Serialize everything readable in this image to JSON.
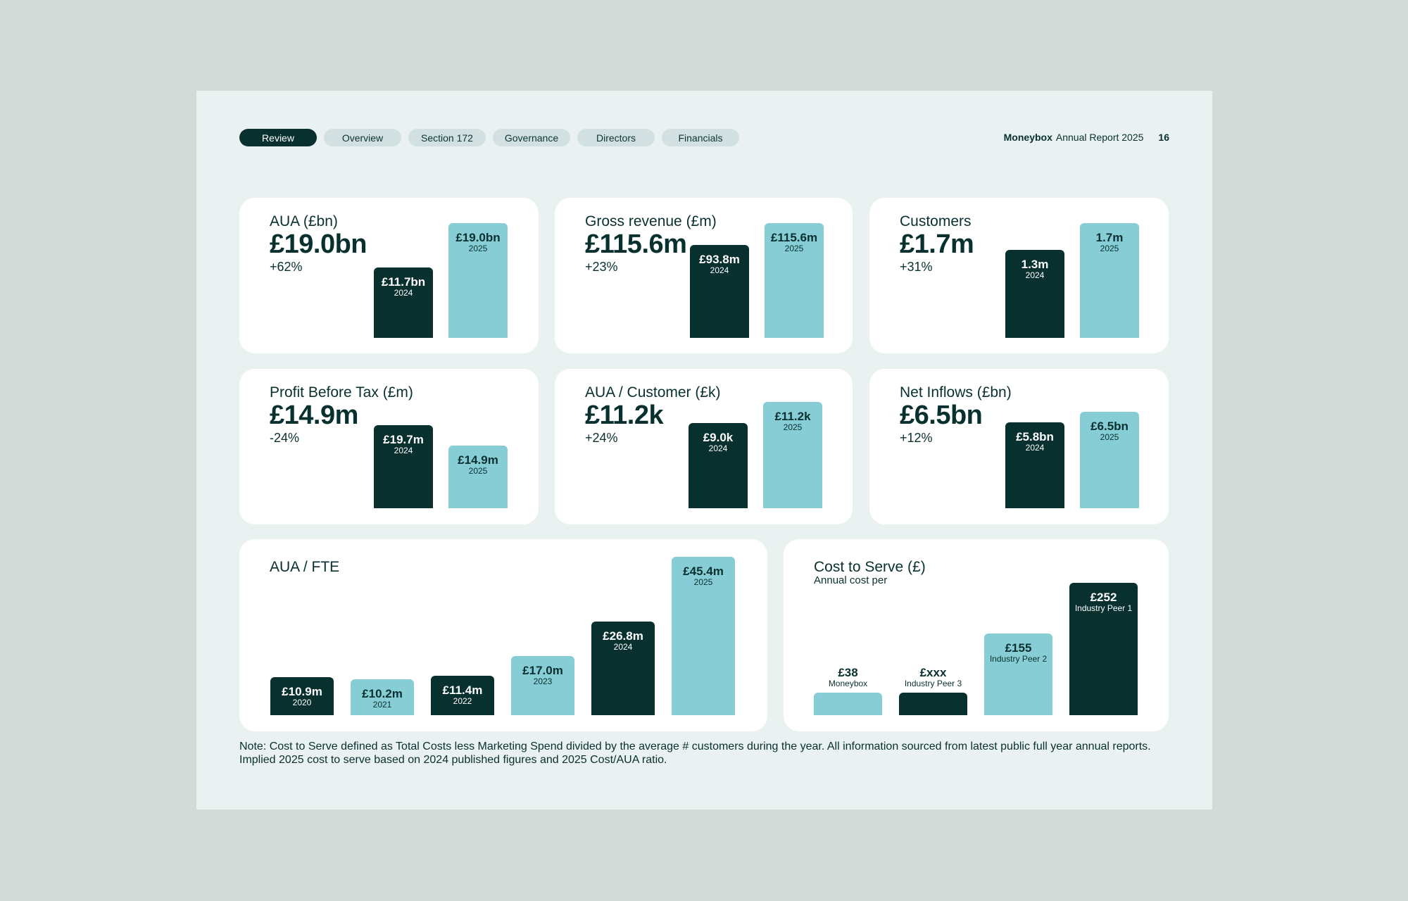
{
  "nav": {
    "tabs": [
      {
        "label": "Review",
        "active": true
      },
      {
        "label": "Overview",
        "active": false
      },
      {
        "label": "Section 172",
        "active": false
      },
      {
        "label": "Governance",
        "active": false
      },
      {
        "label": "Directors",
        "active": false
      },
      {
        "label": "Financials",
        "active": false
      }
    ]
  },
  "header": {
    "brand": "Moneybox",
    "report": "Annual Report 2025",
    "page_number": "16"
  },
  "colors": {
    "dark": "#08302f",
    "light": "#86cdd5",
    "page": "#e9f1f1",
    "card": "#ffffff",
    "backdrop": "#d3dad8"
  },
  "cards": [
    {
      "title": "AUA (£bn)",
      "value": "£19.0bn",
      "change": "+62%"
    },
    {
      "title": "Gross revenue (£m)",
      "value": "£115.6m",
      "change": "+23%"
    },
    {
      "title": "Customers",
      "value": "£1.7m",
      "change": "+31%"
    },
    {
      "title": "Profit Before Tax (£m)",
      "value": "£14.9m",
      "change": "-24%"
    },
    {
      "title": "AUA / Customer (£k)",
      "value": "£11.2k",
      "change": "+24%"
    },
    {
      "title": "Net Inflows (£bn)",
      "value": "£6.5bn",
      "change": "+12%"
    },
    {
      "title": "AUA / FTE"
    },
    {
      "title": "Cost to Serve (£)",
      "subtitle": "Annual cost per"
    }
  ],
  "chart_data": [
    {
      "type": "bar",
      "title": "AUA (£bn)",
      "ylim": [
        0,
        19.0
      ],
      "bars": [
        {
          "category": "2024",
          "value": 11.7,
          "label": "£11.7bn",
          "style": "dark"
        },
        {
          "category": "2025",
          "value": 19.0,
          "label": "£19.0bn",
          "style": "light"
        }
      ]
    },
    {
      "type": "bar",
      "title": "Gross revenue (£m)",
      "ylim": [
        0,
        115.6
      ],
      "bars": [
        {
          "category": "2024",
          "value": 93.8,
          "label": "£93.8m",
          "style": "dark"
        },
        {
          "category": "2025",
          "value": 115.6,
          "label": "£115.6m",
          "style": "light"
        }
      ]
    },
    {
      "type": "bar",
      "title": "Customers",
      "ylim": [
        0,
        1.7
      ],
      "bars": [
        {
          "category": "2024",
          "value": 1.3,
          "label": "1.3m",
          "style": "dark"
        },
        {
          "category": "2025",
          "value": 1.7,
          "label": "1.7m",
          "style": "light"
        }
      ]
    },
    {
      "type": "bar",
      "title": "Profit Before Tax (£m)",
      "ylim": [
        0,
        19.7
      ],
      "bars": [
        {
          "category": "2024",
          "value": 19.7,
          "label": "£19.7m",
          "style": "dark"
        },
        {
          "category": "2025",
          "value": 14.9,
          "label": "£14.9m",
          "style": "light"
        }
      ]
    },
    {
      "type": "bar",
      "title": "AUA / Customer (£k)",
      "ylim": [
        0,
        11.2
      ],
      "bars": [
        {
          "category": "2024",
          "value": 9.0,
          "label": "£9.0k",
          "style": "dark"
        },
        {
          "category": "2025",
          "value": 11.2,
          "label": "£11.2k",
          "style": "light"
        }
      ]
    },
    {
      "type": "bar",
      "title": "Net Inflows (£bn)",
      "ylim": [
        0,
        6.5
      ],
      "bars": [
        {
          "category": "2024",
          "value": 5.8,
          "label": "£5.8bn",
          "style": "dark"
        },
        {
          "category": "2025",
          "value": 6.5,
          "label": "£6.5bn",
          "style": "light"
        }
      ]
    },
    {
      "type": "bar",
      "title": "AUA / FTE",
      "ylim": [
        0,
        45.4
      ],
      "bars": [
        {
          "category": "2020",
          "value": 10.9,
          "label": "£10.9m",
          "style": "dark"
        },
        {
          "category": "2021",
          "value": 10.2,
          "label": "£10.2m",
          "style": "light"
        },
        {
          "category": "2022",
          "value": 11.4,
          "label": "£11.4m",
          "style": "dark"
        },
        {
          "category": "2023",
          "value": 17.0,
          "label": "£17.0m",
          "style": "light"
        },
        {
          "category": "2024",
          "value": 26.8,
          "label": "£26.8m",
          "style": "dark"
        },
        {
          "category": "2025",
          "value": 45.4,
          "label": "£45.4m",
          "style": "light"
        }
      ]
    },
    {
      "type": "bar",
      "title": "Cost to Serve (£)",
      "subtitle": "Annual cost per",
      "ylim": [
        0,
        252
      ],
      "bars": [
        {
          "category": "Moneybox",
          "value": 38,
          "label": "£38",
          "style": "light"
        },
        {
          "category": "Industry Peer 3",
          "value": null,
          "label": "£xxx",
          "style": "dark"
        },
        {
          "category": "Industry Peer 2",
          "value": 155,
          "label": "£155",
          "style": "light"
        },
        {
          "category": "Industry Peer 1",
          "value": 252,
          "label": "£252",
          "style": "dark"
        }
      ]
    }
  ],
  "note": "Note: Cost to Serve defined as Total Costs less Marketing Spend divided by the average # customers during the year. All information sourced from latest public full year annual reports. Implied 2025 cost to serve based on 2024 published figures and 2025 Cost/AUA ratio."
}
